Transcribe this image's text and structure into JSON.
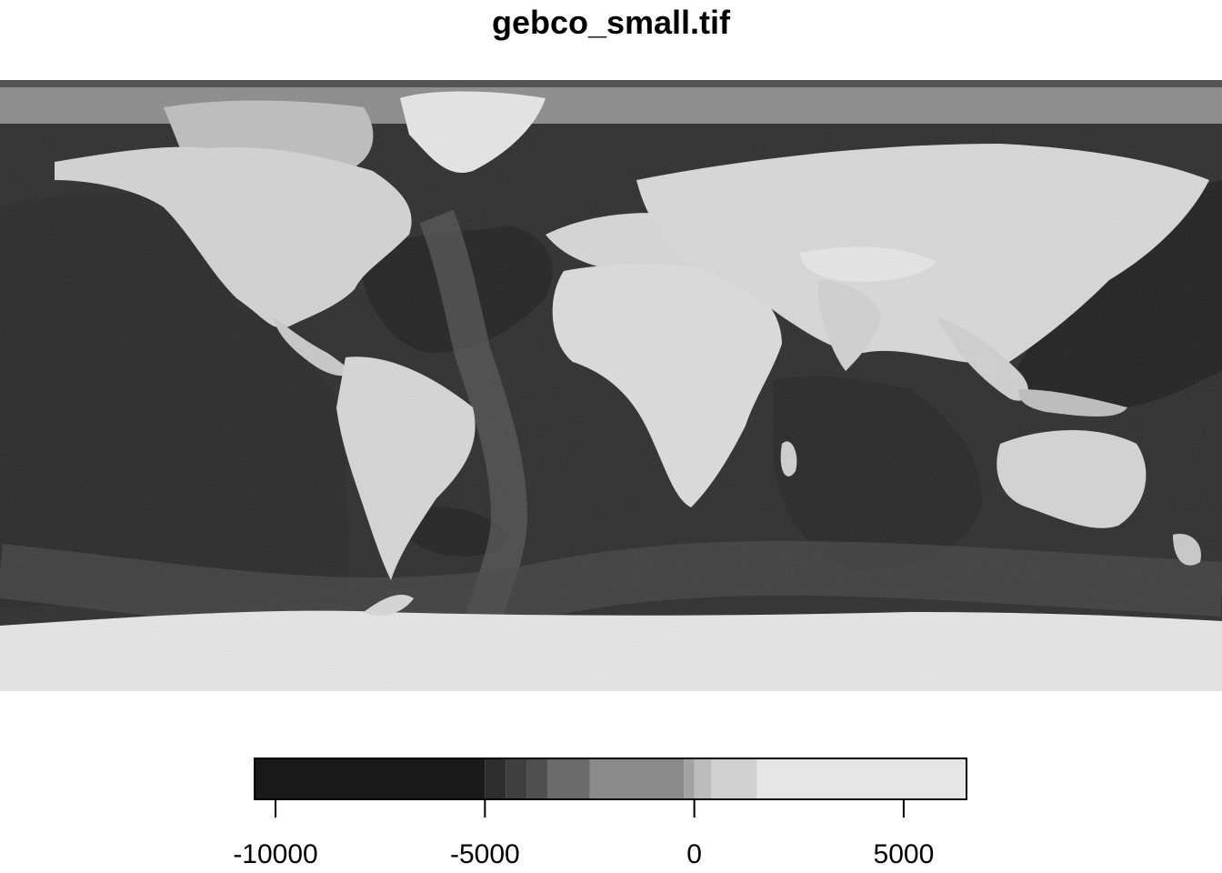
{
  "title": "gebco_small.tif",
  "legend": {
    "classes": [
      {
        "from": -10500,
        "to": -5000,
        "color": "#191919"
      },
      {
        "from": -5000,
        "to": -4500,
        "color": "#2e2e2e"
      },
      {
        "from": -4500,
        "to": -4000,
        "color": "#3f3f3f"
      },
      {
        "from": -4000,
        "to": -3500,
        "color": "#4f4f4f"
      },
      {
        "from": -3500,
        "to": -2500,
        "color": "#6b6b6b"
      },
      {
        "from": -2500,
        "to": -250,
        "color": "#8a8a8a"
      },
      {
        "from": -250,
        "to": 0,
        "color": "#a3a3a3"
      },
      {
        "from": 0,
        "to": 400,
        "color": "#bcbcbc"
      },
      {
        "from": 400,
        "to": 1500,
        "color": "#d0d0d0"
      },
      {
        "from": 1500,
        "to": 6500,
        "color": "#e6e6e6"
      }
    ],
    "range": [
      -10500,
      6500
    ],
    "ticks": [
      {
        "value": -10000,
        "label": "-10000"
      },
      {
        "value": -5000,
        "label": "-5000"
      },
      {
        "value": 0,
        "label": "0"
      },
      {
        "value": 5000,
        "label": "5000"
      }
    ]
  },
  "colors": {
    "deep_ocean": "#1c1c1c",
    "mid_ocean": "#3a3a3a",
    "shelf": "#8a8a8a",
    "land": "#d3d3d3",
    "ice": "#e6e6e6"
  }
}
